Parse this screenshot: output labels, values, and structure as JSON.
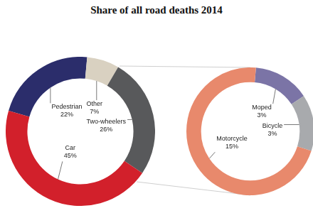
{
  "chart_data": [
    {
      "type": "doughnut",
      "title": "Share of all road deaths 2014",
      "categories": [
        "Pedestrian",
        "Other",
        "Two-wheelers",
        "Car"
      ],
      "values": [
        22,
        7,
        26,
        45
      ],
      "value_labels": [
        "22%",
        "7%",
        "26%",
        "45%"
      ],
      "colors": [
        "#2b2d6b",
        "#d9d1c1",
        "#58595b",
        "#d2202b"
      ],
      "data_labels": true
    },
    {
      "type": "doughnut",
      "categories": [
        "Moped",
        "Bicycle",
        "Motorcycle"
      ],
      "values": [
        3,
        3,
        15
      ],
      "value_labels": [
        "3%",
        "3%",
        "15%"
      ],
      "colors": [
        "#7b74a6",
        "#a8aaad",
        "#e8896c"
      ],
      "data_labels": true
    }
  ]
}
